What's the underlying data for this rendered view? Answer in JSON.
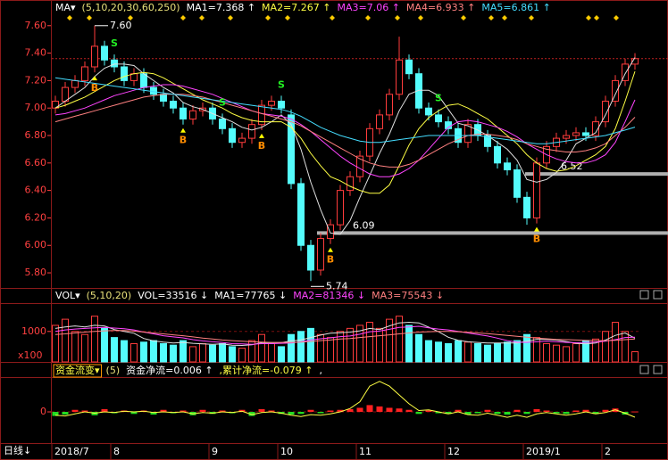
{
  "chart_data": {
    "type": "candlestick",
    "categories": [
      "2018/7",
      null,
      null,
      null,
      null,
      null,
      "8",
      null,
      null,
      null,
      null,
      null,
      null,
      null,
      null,
      null,
      "9",
      null,
      null,
      null,
      null,
      null,
      null,
      "10",
      null,
      null,
      null,
      null,
      null,
      null,
      null,
      "11",
      null,
      null,
      null,
      null,
      null,
      null,
      null,
      null,
      "12",
      null,
      null,
      null,
      null,
      null,
      null,
      null,
      "2019/1",
      null,
      null,
      null,
      null,
      null,
      null,
      null,
      "2",
      null,
      null,
      null
    ],
    "open": [
      7.0,
      7.05,
      7.15,
      7.2,
      7.3,
      7.45,
      7.35,
      7.3,
      7.2,
      7.25,
      7.15,
      7.1,
      7.05,
      7.0,
      6.92,
      6.98,
      7.0,
      6.92,
      6.85,
      6.75,
      6.78,
      6.88,
      7.02,
      7.05,
      6.95,
      6.45,
      6.0,
      5.82,
      6.05,
      6.15,
      6.4,
      6.5,
      6.65,
      6.85,
      6.95,
      7.1,
      7.35,
      7.25,
      7.0,
      6.95,
      6.9,
      6.85,
      6.75,
      6.88,
      6.8,
      6.72,
      6.6,
      6.55,
      6.35,
      6.2,
      6.6,
      6.72,
      6.78,
      6.8,
      6.82,
      6.8,
      6.9,
      7.05,
      7.2,
      7.32
    ],
    "high": [
      7.09,
      7.19,
      7.24,
      7.34,
      7.6,
      7.49,
      7.39,
      7.34,
      7.29,
      7.29,
      7.19,
      7.14,
      7.09,
      7.04,
      7.02,
      7.04,
      7.04,
      6.96,
      6.89,
      6.82,
      6.92,
      7.06,
      7.09,
      7.09,
      6.99,
      6.49,
      6.04,
      6.09,
      6.19,
      6.44,
      6.54,
      6.69,
      6.89,
      6.99,
      7.14,
      7.52,
      7.39,
      7.29,
      7.04,
      6.99,
      6.94,
      6.89,
      6.92,
      6.92,
      6.84,
      6.76,
      6.64,
      6.59,
      6.39,
      6.64,
      6.76,
      6.82,
      6.84,
      6.86,
      6.86,
      6.94,
      7.09,
      7.24,
      7.36,
      7.4
    ],
    "low": [
      6.96,
      7.01,
      7.11,
      7.16,
      7.26,
      7.31,
      7.26,
      7.16,
      7.16,
      7.11,
      7.06,
      7.01,
      6.96,
      6.88,
      6.88,
      6.94,
      6.88,
      6.81,
      6.71,
      6.71,
      6.74,
      6.84,
      6.98,
      6.96,
      6.41,
      5.96,
      5.74,
      5.78,
      6.01,
      6.11,
      6.36,
      6.46,
      6.61,
      6.81,
      6.91,
      7.06,
      7.21,
      6.96,
      6.91,
      6.86,
      6.81,
      6.71,
      6.71,
      6.76,
      6.68,
      6.56,
      6.51,
      6.31,
      6.15,
      6.16,
      6.56,
      6.68,
      6.74,
      6.76,
      6.76,
      6.76,
      6.86,
      7.01,
      7.16,
      7.28
    ],
    "close": [
      7.05,
      7.15,
      7.2,
      7.3,
      7.45,
      7.35,
      7.3,
      7.2,
      7.25,
      7.15,
      7.1,
      7.05,
      7.0,
      6.92,
      6.98,
      7.0,
      6.92,
      6.85,
      6.75,
      6.78,
      6.88,
      7.02,
      7.05,
      7.0,
      6.45,
      6.0,
      5.82,
      6.05,
      6.15,
      6.4,
      6.5,
      6.65,
      6.85,
      6.95,
      7.1,
      7.35,
      7.25,
      7.0,
      6.95,
      6.9,
      6.85,
      6.75,
      6.88,
      6.8,
      6.72,
      6.6,
      6.55,
      6.35,
      6.2,
      6.6,
      6.72,
      6.78,
      6.8,
      6.82,
      6.8,
      6.9,
      7.05,
      7.2,
      7.32,
      7.36
    ],
    "up_color": "#ff3c3c",
    "down_color": "#54fcfc",
    "ylim": [
      5.69,
      7.67
    ],
    "yticks": [
      {
        "value": 7.6,
        "label": "7.60"
      },
      {
        "value": 7.4,
        "label": "7.40"
      },
      {
        "value": 7.2,
        "label": "7.20"
      },
      {
        "value": 7.0,
        "label": "7.00"
      },
      {
        "value": 6.8,
        "label": "6.80"
      },
      {
        "value": 6.6,
        "label": "6.60"
      },
      {
        "value": 6.4,
        "label": "6.40"
      },
      {
        "value": 6.2,
        "label": "6.20"
      },
      {
        "value": 6.0,
        "label": "6.00"
      },
      {
        "value": 5.8,
        "label": "5.80"
      }
    ],
    "header": [
      {
        "text": "MA▾",
        "color": "#ffffff"
      },
      {
        "text": "(5,10,20,30,60,250)",
        "color": "#e8e07a"
      },
      {
        "text": "MA1=7.368 ↑",
        "color": "#ffffff"
      },
      {
        "text": "MA2=7.267 ↑",
        "color": "#ffff44"
      },
      {
        "text": "MA3=7.06 ↑",
        "color": "#ff44ff"
      },
      {
        "text": "MA4=6.933 ↑",
        "color": "#ff8080"
      },
      {
        "text": "MA5=6.861 ↑",
        "color": "#44ddff"
      }
    ],
    "ma_series": [
      {
        "color": "#e0e0e0",
        "values": [
          7.0,
          7.05,
          7.1,
          7.15,
          7.23,
          7.29,
          7.32,
          7.32,
          7.31,
          7.25,
          7.2,
          7.15,
          7.11,
          7.04,
          7.01,
          6.99,
          6.96,
          6.93,
          6.9,
          6.86,
          6.84,
          6.86,
          6.9,
          6.95,
          6.88,
          6.7,
          6.46,
          6.26,
          6.09,
          6.08,
          6.18,
          6.35,
          6.51,
          6.67,
          6.81,
          6.98,
          7.1,
          7.13,
          7.13,
          7.09,
          6.99,
          6.89,
          6.87,
          6.84,
          6.8,
          6.75,
          6.7,
          6.62,
          6.48,
          6.46,
          6.48,
          6.53,
          6.62,
          6.74,
          6.78,
          6.82,
          6.95,
          7.1,
          7.25,
          7.368
        ]
      },
      {
        "color": "#ffff44",
        "values": [
          7.0,
          7.02,
          7.05,
          7.08,
          7.12,
          7.16,
          7.2,
          7.23,
          7.25,
          7.26,
          7.25,
          7.22,
          7.18,
          7.14,
          7.1,
          7.06,
          7.03,
          7.0,
          6.96,
          6.93,
          6.91,
          6.9,
          6.9,
          6.9,
          6.86,
          6.78,
          6.67,
          6.58,
          6.5,
          6.47,
          6.43,
          6.4,
          6.38,
          6.38,
          6.44,
          6.58,
          6.73,
          6.85,
          6.93,
          6.98,
          7.02,
          7.03,
          7.0,
          6.96,
          6.92,
          6.86,
          6.8,
          6.74,
          6.66,
          6.6,
          6.56,
          6.54,
          6.55,
          6.58,
          6.62,
          6.66,
          6.72,
          6.85,
          7.05,
          7.267
        ]
      },
      {
        "color": "#ff44ff",
        "values": [
          6.95,
          6.96,
          6.98,
          7.0,
          7.03,
          7.06,
          7.09,
          7.11,
          7.13,
          7.15,
          7.16,
          7.17,
          7.17,
          7.16,
          7.14,
          7.12,
          7.1,
          7.07,
          7.04,
          7.01,
          6.98,
          6.96,
          6.95,
          6.94,
          6.92,
          6.88,
          6.83,
          6.77,
          6.71,
          6.65,
          6.6,
          6.56,
          6.52,
          6.5,
          6.5,
          6.52,
          6.56,
          6.62,
          6.7,
          6.78,
          6.86,
          6.9,
          6.91,
          6.9,
          6.88,
          6.86,
          6.83,
          6.79,
          6.74,
          6.7,
          6.66,
          6.63,
          6.61,
          6.6,
          6.6,
          6.62,
          6.66,
          6.75,
          6.9,
          7.06
        ]
      },
      {
        "color": "#ff8080",
        "values": [
          6.9,
          6.92,
          6.94,
          6.96,
          6.98,
          7.0,
          7.02,
          7.04,
          7.06,
          7.08,
          7.09,
          7.1,
          7.1,
          7.1,
          7.09,
          7.08,
          7.06,
          7.04,
          7.02,
          7.0,
          6.98,
          6.96,
          6.94,
          6.92,
          6.9,
          6.87,
          6.83,
          6.79,
          6.75,
          6.71,
          6.67,
          6.63,
          6.6,
          6.58,
          6.57,
          6.57,
          6.59,
          6.62,
          6.66,
          6.7,
          6.74,
          6.77,
          6.8,
          6.81,
          6.81,
          6.8,
          6.79,
          6.77,
          6.74,
          6.72,
          6.7,
          6.69,
          6.68,
          6.68,
          6.69,
          6.71,
          6.74,
          6.8,
          6.86,
          6.933
        ]
      },
      {
        "color": "#44ddff",
        "values": [
          7.22,
          7.21,
          7.2,
          7.19,
          7.18,
          7.17,
          7.16,
          7.15,
          7.14,
          7.13,
          7.12,
          7.11,
          7.1,
          7.09,
          7.08,
          7.07,
          7.06,
          7.05,
          7.04,
          7.03,
          7.02,
          7.01,
          7.0,
          6.99,
          6.97,
          6.94,
          6.9,
          6.86,
          6.83,
          6.8,
          6.78,
          6.76,
          6.75,
          6.75,
          6.76,
          6.77,
          6.78,
          6.79,
          6.8,
          6.8,
          6.8,
          6.8,
          6.8,
          6.8,
          6.79,
          6.78,
          6.77,
          6.76,
          6.75,
          6.74,
          6.74,
          6.75,
          6.76,
          6.77,
          6.78,
          6.79,
          6.8,
          6.82,
          6.84,
          6.861
        ]
      }
    ],
    "signals": [
      null,
      null,
      null,
      null,
      "B",
      null,
      "S",
      null,
      null,
      null,
      null,
      null,
      null,
      "B",
      null,
      null,
      null,
      "S",
      null,
      null,
      null,
      "B",
      null,
      "S",
      null,
      null,
      null,
      null,
      "B",
      null,
      null,
      null,
      null,
      null,
      null,
      null,
      null,
      null,
      null,
      "S",
      null,
      null,
      null,
      null,
      null,
      null,
      null,
      null,
      null,
      "B",
      null,
      null,
      null,
      null,
      null,
      null,
      null,
      null,
      null,
      null
    ],
    "high_label": "7.60",
    "low_label": "5.74",
    "support_levels": [
      {
        "value": 6.09,
        "label": "6.09"
      },
      {
        "value": 6.52,
        "label": "6.52"
      }
    ],
    "volume": {
      "type": "bar",
      "values": [
        1200,
        1400,
        1000,
        900,
        1500,
        1100,
        800,
        700,
        600,
        650,
        700,
        600,
        550,
        700,
        500,
        600,
        550,
        600,
        500,
        450,
        700,
        900,
        600,
        500,
        900,
        1000,
        1100,
        900,
        800,
        1000,
        1100,
        1200,
        1300,
        1100,
        1400,
        1500,
        1200,
        900,
        700,
        650,
        600,
        700,
        650,
        600,
        550,
        600,
        650,
        700,
        900,
        800,
        600,
        550,
        500,
        600,
        700,
        750,
        1000,
        1300,
        1000,
        335.16
      ],
      "ylim": [
        0,
        1900
      ],
      "yticks": [
        1000
      ],
      "unit_label": "x100",
      "header": [
        {
          "text": "VOL▾",
          "color": "#ffffff"
        },
        {
          "text": "(5,10,20)",
          "color": "#e8e07a"
        },
        {
          "text": "VOL=33516 ↓",
          "color": "#ffffff"
        },
        {
          "text": "MA1=77765 ↓",
          "color": "#ffffff"
        },
        {
          "text": "MA2=81346 ↓",
          "color": "#ff44ff"
        },
        {
          "text": "MA3=75543 ↓",
          "color": "#ff8080"
        }
      ],
      "ma_series": [
        {
          "color": "#e0e0e0",
          "values": [
            1100,
            1150,
            1180,
            1150,
            1200,
            1180,
            1060,
            1000,
            940,
            770,
            690,
            650,
            620,
            640,
            610,
            590,
            580,
            590,
            550,
            540,
            560,
            630,
            630,
            630,
            690,
            720,
            800,
            880,
            940,
            960,
            980,
            1020,
            1100,
            1060,
            1180,
            1280,
            1300,
            1280,
            1140,
            990,
            810,
            710,
            660,
            640,
            620,
            620,
            620,
            620,
            680,
            740,
            740,
            720,
            670,
            610,
            590,
            620,
            720,
            870,
            950,
            777.65
          ]
        },
        {
          "color": "#ff44ff",
          "values": [
            1000,
            1050,
            1080,
            1100,
            1120,
            1130,
            1110,
            1090,
            1050,
            980,
            920,
            860,
            820,
            790,
            730,
            690,
            660,
            640,
            600,
            590,
            580,
            600,
            600,
            610,
            620,
            660,
            720,
            760,
            790,
            830,
            850,
            910,
            990,
            1010,
            1070,
            1130,
            1150,
            1170,
            1120,
            1080,
            1050,
            1000,
            950,
            900,
            850,
            780,
            700,
            650,
            640,
            660,
            680,
            660,
            640,
            630,
            640,
            650,
            680,
            730,
            800,
            813.46
          ]
        },
        {
          "color": "#ff8080",
          "values": [
            900,
            920,
            950,
            980,
            1000,
            1020,
            1030,
            1030,
            1010,
            980,
            950,
            920,
            890,
            860,
            820,
            780,
            750,
            720,
            700,
            680,
            660,
            650,
            640,
            640,
            640,
            650,
            670,
            700,
            720,
            750,
            770,
            800,
            830,
            860,
            890,
            920,
            950,
            980,
            990,
            1000,
            1000,
            990,
            970,
            950,
            930,
            900,
            870,
            840,
            810,
            780,
            760,
            740,
            730,
            720,
            710,
            700,
            700,
            710,
            730,
            755.43
          ]
        }
      ]
    },
    "flow": {
      "type": "bar",
      "values": [
        -0.06,
        -0.04,
        0.03,
        0.02,
        -0.05,
        0.04,
        -0.02,
        0.02,
        -0.03,
        0.02,
        -0.04,
        0.03,
        -0.02,
        0.02,
        -0.05,
        0.03,
        -0.03,
        0.02,
        -0.02,
        0.03,
        -0.06,
        0.04,
        0.02,
        -0.03,
        -0.04,
        -0.03,
        0.03,
        -0.02,
        0.02,
        0.03,
        0.04,
        0.06,
        0.1,
        0.08,
        0.06,
        0.05,
        0.03,
        -0.03,
        0.02,
        -0.02,
        -0.03,
        0.03,
        -0.04,
        -0.02,
        0.03,
        -0.03,
        -0.04,
        0.03,
        -0.03,
        0.04,
        0.02,
        -0.02,
        -0.03,
        0.02,
        0.03,
        -0.03,
        0.03,
        0.05,
        -0.04,
        0.006
      ],
      "pos_color": "#ff2020",
      "neg_color": "#22dd22",
      "cumulative": {
        "color": "#ffff44",
        "values": [
          -0.05,
          -0.06,
          -0.03,
          0.0,
          -0.02,
          0.0,
          -0.01,
          0.01,
          0.0,
          0.01,
          -0.01,
          0.0,
          -0.01,
          0.0,
          -0.03,
          -0.01,
          -0.02,
          0.0,
          -0.01,
          0.01,
          -0.04,
          -0.01,
          0.0,
          -0.02,
          -0.05,
          -0.07,
          -0.04,
          -0.05,
          -0.03,
          0.0,
          0.05,
          0.15,
          0.38,
          0.45,
          0.38,
          0.25,
          0.12,
          0.02,
          0.03,
          0.0,
          -0.03,
          0.0,
          -0.04,
          -0.05,
          -0.02,
          -0.05,
          -0.08,
          -0.05,
          -0.08,
          -0.03,
          -0.01,
          -0.03,
          -0.05,
          -0.03,
          0.0,
          -0.03,
          -0.01,
          0.03,
          -0.02,
          -0.079
        ]
      },
      "ylim": [
        -0.46,
        0.5
      ],
      "yticks": [
        0
      ],
      "header": [
        {
          "text": "资金流变▾",
          "color": "#ffff44"
        },
        {
          "text": "(5)",
          "color": "#e8e07a"
        },
        {
          "text": "资金净流=0.006 ↑",
          "color": "#ffffff"
        },
        {
          "text": ",累计净流=-0.079 ↑",
          "color": "#ffff44"
        },
        {
          "text": ",",
          "color": "#ffffff"
        }
      ]
    }
  },
  "period_label": "日线↓"
}
